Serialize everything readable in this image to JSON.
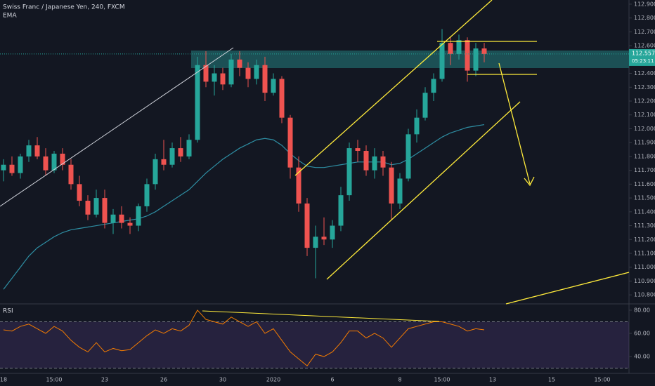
{
  "chart_data": [
    {
      "type": "candlestick",
      "title": "Swiss Franc / Japanese Yen, 240, FXCM",
      "categories": [
        "18",
        null,
        null,
        null,
        null,
        null,
        "15:00",
        null,
        null,
        null,
        null,
        null,
        "23",
        null,
        null,
        null,
        null,
        null,
        null,
        "26",
        null,
        null,
        null,
        null,
        null,
        null,
        "30",
        null,
        null,
        null,
        null,
        null,
        "2020",
        null,
        null,
        null,
        null,
        null,
        null,
        "6",
        null,
        null,
        null,
        null,
        null,
        null,
        null,
        "8",
        null,
        null,
        null,
        null,
        "15:00",
        null,
        null,
        null,
        null,
        null,
        "13",
        null,
        null,
        null,
        null,
        null,
        null,
        "15",
        null,
        null,
        null,
        null,
        null,
        "15:00",
        null,
        null
      ],
      "open": [
        111.7,
        111.74,
        111.68,
        111.8,
        111.88,
        111.8,
        111.7,
        111.82,
        111.74,
        111.6,
        111.48,
        111.38,
        111.5,
        111.32,
        111.38,
        111.32,
        111.3,
        111.44,
        111.6,
        111.78,
        111.74,
        111.86,
        111.8,
        111.92,
        112.46,
        112.34,
        112.4,
        112.32,
        112.5,
        112.44,
        112.36,
        112.46,
        112.26,
        112.36,
        112.08,
        111.72,
        111.46,
        111.14,
        111.22,
        111.2,
        111.3,
        111.52,
        111.86,
        111.84,
        111.7,
        111.8,
        111.72,
        111.46,
        111.64,
        111.96,
        112.08,
        112.26,
        112.36,
        112.62,
        112.54,
        112.64,
        112.42,
        112.58,
        null,
        null,
        null,
        null,
        null,
        null,
        null,
        null,
        null,
        null,
        null,
        null,
        null,
        null,
        null,
        null
      ],
      "high": [
        111.78,
        111.8,
        111.82,
        111.92,
        111.94,
        111.86,
        111.84,
        111.86,
        111.78,
        111.66,
        111.52,
        111.56,
        111.56,
        111.42,
        111.44,
        111.36,
        111.46,
        111.64,
        111.82,
        111.92,
        111.9,
        111.94,
        111.96,
        112.52,
        112.56,
        112.46,
        112.44,
        112.54,
        112.56,
        112.48,
        112.5,
        112.52,
        112.4,
        112.38,
        112.1,
        111.8,
        111.5,
        111.3,
        111.36,
        111.34,
        111.58,
        111.9,
        111.92,
        111.88,
        111.86,
        111.84,
        111.76,
        111.68,
        112.0,
        112.14,
        112.3,
        112.4,
        112.72,
        112.66,
        112.68,
        112.66,
        112.62,
        112.62,
        null,
        null,
        null,
        null,
        null,
        null,
        null,
        null,
        null,
        null,
        null,
        null,
        null,
        null,
        null,
        null
      ],
      "low": [
        111.62,
        111.66,
        111.64,
        111.76,
        111.78,
        111.66,
        111.68,
        111.7,
        111.56,
        111.44,
        111.34,
        111.36,
        111.28,
        111.24,
        111.28,
        111.24,
        111.26,
        111.4,
        111.56,
        111.7,
        111.72,
        111.76,
        111.78,
        111.9,
        112.3,
        112.24,
        112.28,
        112.3,
        112.38,
        112.3,
        112.32,
        112.2,
        112.24,
        112.04,
        111.64,
        111.4,
        111.08,
        110.92,
        111.16,
        111.14,
        111.26,
        111.48,
        111.76,
        111.66,
        111.64,
        111.66,
        111.34,
        111.42,
        111.62,
        111.9,
        112.06,
        112.2,
        112.34,
        112.46,
        112.5,
        112.34,
        112.38,
        112.48,
        null,
        null,
        null,
        null,
        null,
        null,
        null,
        null,
        null,
        null,
        null,
        null,
        null,
        null,
        null,
        null
      ],
      "close": [
        111.74,
        111.68,
        111.8,
        111.88,
        111.8,
        111.7,
        111.82,
        111.74,
        111.6,
        111.48,
        111.38,
        111.5,
        111.32,
        111.38,
        111.32,
        111.3,
        111.44,
        111.6,
        111.78,
        111.74,
        111.86,
        111.8,
        111.92,
        112.46,
        112.34,
        112.4,
        112.32,
        112.5,
        112.44,
        112.36,
        112.46,
        112.26,
        112.36,
        112.08,
        111.72,
        111.46,
        111.14,
        111.22,
        111.2,
        111.3,
        111.52,
        111.86,
        111.84,
        111.7,
        111.8,
        111.72,
        111.46,
        111.64,
        111.96,
        112.08,
        112.26,
        112.36,
        112.62,
        112.54,
        112.64,
        112.42,
        112.58,
        112.54,
        null,
        null,
        null,
        null,
        null,
        null,
        null,
        null,
        null,
        null,
        null,
        null,
        null,
        null,
        null,
        null
      ],
      "up_color": "#26a69a",
      "down_color": "#ef5350",
      "series": [
        {
          "name": "EMA",
          "color": "#2e8ea3",
          "values": [
            110.84,
            110.92,
            111.0,
            111.08,
            111.14,
            111.18,
            111.22,
            111.25,
            111.27,
            111.28,
            111.29,
            111.3,
            111.31,
            111.32,
            111.33,
            111.34,
            111.35,
            111.37,
            111.4,
            111.44,
            111.48,
            111.52,
            111.56,
            111.62,
            111.68,
            111.73,
            111.78,
            111.82,
            111.86,
            111.89,
            111.92,
            111.93,
            111.92,
            111.88,
            111.82,
            111.77,
            111.73,
            111.72,
            111.72,
            111.73,
            111.74,
            111.75,
            111.76,
            111.76,
            111.76,
            111.76,
            111.74,
            111.75,
            111.78,
            111.82,
            111.86,
            111.9,
            111.94,
            111.97,
            111.99,
            112.01,
            112.02,
            112.03,
            null,
            null,
            null,
            null,
            null,
            null,
            null,
            null,
            null,
            null,
            null,
            null,
            null,
            null,
            null,
            null
          ]
        }
      ],
      "price_label": "112.557",
      "countdown_label": "05:23:11",
      "ylim": [
        110.74,
        112.93
      ],
      "yticks": [
        {
          "value": 112.9,
          "label": "112.900"
        },
        {
          "value": 112.8,
          "label": "112.800"
        },
        {
          "value": 112.7,
          "label": "112.700"
        },
        {
          "value": 112.6,
          "label": "112.600"
        },
        {
          "value": 112.5,
          "label": "112.500"
        },
        {
          "value": 112.4,
          "label": "112.400"
        },
        {
          "value": 112.3,
          "label": "112.300"
        },
        {
          "value": 112.2,
          "label": "112.200"
        },
        {
          "value": 112.1,
          "label": "112.100"
        },
        {
          "value": 112.0,
          "label": "112.000"
        },
        {
          "value": 111.9,
          "label": "111.900"
        },
        {
          "value": 111.8,
          "label": "111.800"
        },
        {
          "value": 111.7,
          "label": "111.700"
        },
        {
          "value": 111.6,
          "label": "111.600"
        },
        {
          "value": 111.5,
          "label": "111.500"
        },
        {
          "value": 111.4,
          "label": "111.400"
        },
        {
          "value": 111.3,
          "label": "111.300"
        },
        {
          "value": 111.2,
          "label": "111.200"
        },
        {
          "value": 111.1,
          "label": "111.100"
        },
        {
          "value": 111.0,
          "label": "111.000"
        },
        {
          "value": 110.9,
          "label": "110.900"
        },
        {
          "value": 110.8,
          "label": "110.800"
        }
      ]
    },
    {
      "type": "line",
      "title": "RSI",
      "series": [
        {
          "name": "RSI",
          "color": "#f57c00",
          "values": [
            63,
            62,
            66,
            68,
            64,
            60,
            66,
            62,
            54,
            48,
            44,
            52,
            44,
            47,
            45,
            46,
            52,
            58,
            63,
            60,
            64,
            62,
            67,
            80,
            72,
            70,
            68,
            74,
            70,
            66,
            70,
            60,
            64,
            54,
            44,
            38,
            32,
            42,
            40,
            44,
            52,
            62,
            62,
            56,
            60,
            56,
            48,
            56,
            64,
            66,
            68,
            70,
            70,
            68,
            66,
            62,
            64,
            63,
            null,
            null,
            null,
            null,
            null,
            null,
            null,
            null,
            null,
            null,
            null,
            null,
            null,
            null,
            null,
            null
          ]
        }
      ],
      "band": [
        30,
        70
      ],
      "band_color": "#7e57c2",
      "ylim": [
        26.7,
        83.6
      ],
      "yticks": [
        {
          "value": 80,
          "label": "80.00"
        },
        {
          "value": 60,
          "label": "60.00"
        },
        {
          "value": 40,
          "label": "40.00"
        }
      ]
    }
  ]
}
